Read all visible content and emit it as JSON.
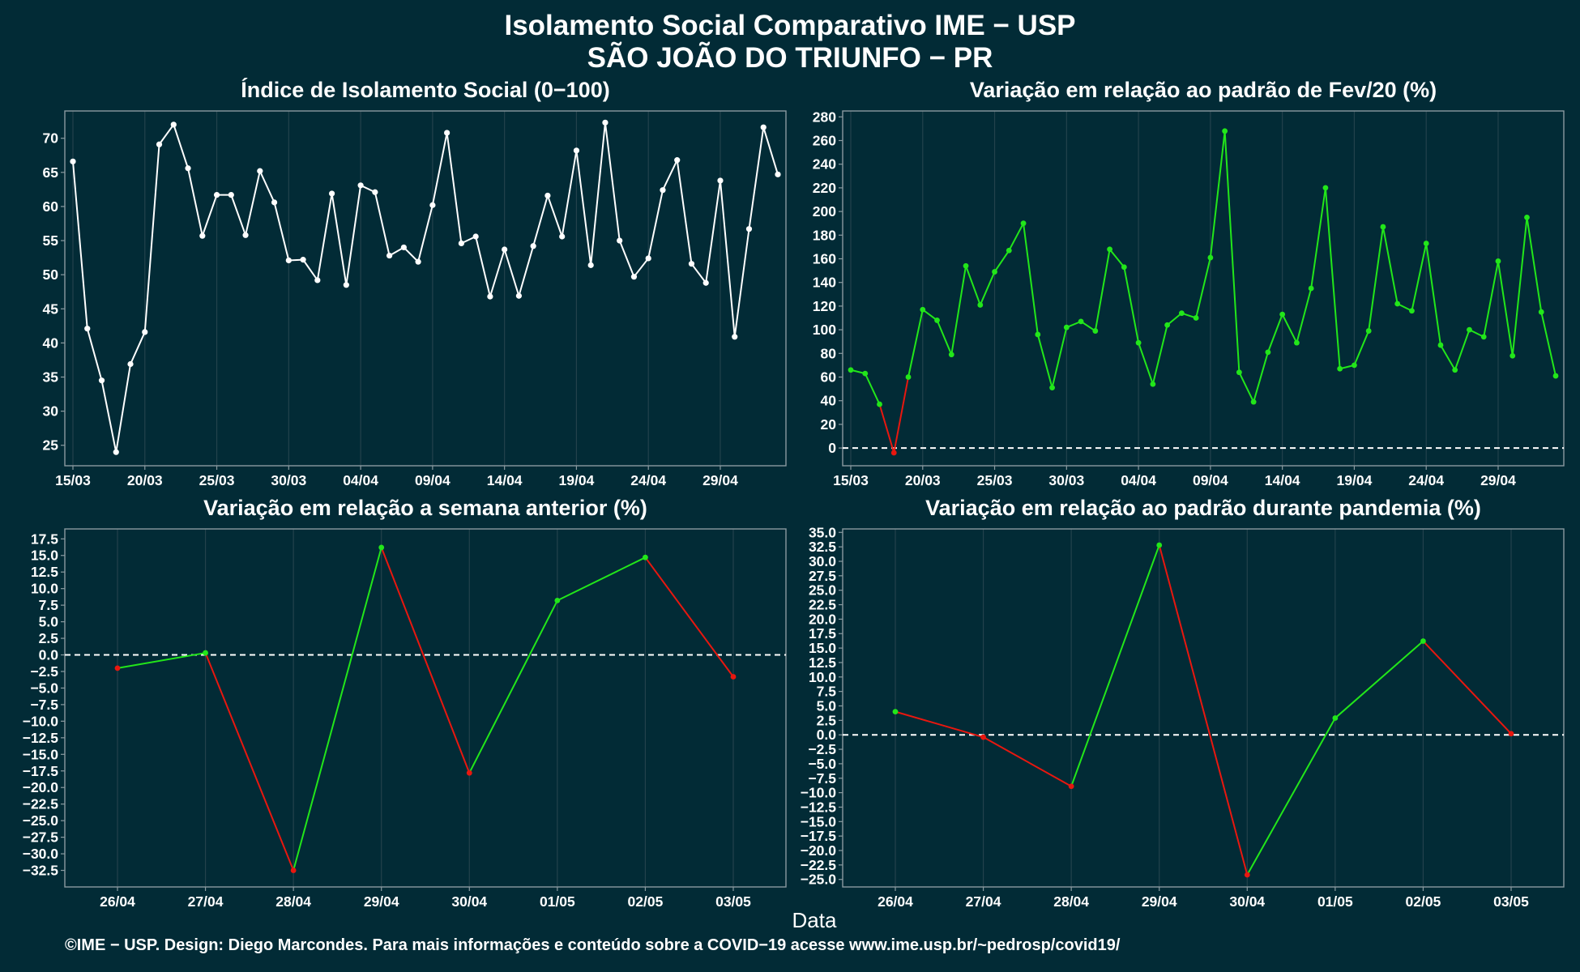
{
  "header": {
    "title": "Isolamento Social Comparativo IME − USP",
    "subtitle": "SÃO JOÃO DO TRIUNFO − PR"
  },
  "footer": "©IME − USP. Design: Diego Marcondes. Para mais informações e conteúdo sobre a COVID−19 acesse www.ime.usp.br/~pedrosp/covid19/",
  "xlabel": "Data",
  "colors": {
    "background": "#022b36",
    "frame": "#8a9aa0",
    "grid": "#23424c",
    "up": "#22e61a",
    "down": "#e8170f",
    "index": "#ffffff"
  },
  "chart_data": [
    {
      "id": "isolation-index",
      "type": "line",
      "title": "Índice de Isolamento Social (0−100)",
      "x": [
        "15/03",
        "16/03",
        "17/03",
        "18/03",
        "19/03",
        "20/03",
        "21/03",
        "22/03",
        "23/03",
        "24/03",
        "25/03",
        "26/03",
        "27/03",
        "28/03",
        "29/03",
        "30/03",
        "31/03",
        "01/04",
        "02/04",
        "03/04",
        "04/04",
        "05/04",
        "06/04",
        "07/04",
        "08/04",
        "09/04",
        "10/04",
        "11/04",
        "12/04",
        "13/04",
        "14/04",
        "15/04",
        "16/04",
        "17/04",
        "18/04",
        "19/04",
        "20/04",
        "21/04",
        "22/04",
        "23/04",
        "24/04",
        "25/04",
        "26/04",
        "27/04",
        "28/04",
        "29/04",
        "30/04",
        "01/05",
        "02/05",
        "03/05"
      ],
      "x_ticks": [
        "15/03",
        "20/03",
        "25/03",
        "30/03",
        "04/04",
        "09/04",
        "14/04",
        "19/04",
        "24/04",
        "29/04"
      ],
      "values": [
        66.6,
        42.1,
        34.5,
        24.0,
        36.9,
        41.6,
        69.1,
        72.0,
        65.6,
        55.7,
        61.7,
        61.7,
        55.8,
        65.2,
        60.6,
        52.1,
        52.2,
        49.2,
        61.9,
        48.5,
        63.1,
        62.1,
        52.8,
        54.0,
        51.9,
        60.2,
        70.8,
        54.6,
        55.6,
        46.8,
        53.7,
        46.9,
        54.2,
        61.6,
        55.6,
        68.2,
        51.4,
        72.3,
        55.0,
        49.7,
        52.4,
        62.4,
        66.8,
        51.6,
        48.8,
        63.8,
        40.9,
        56.7,
        71.6,
        64.7
      ],
      "ylim": [
        22,
        74
      ],
      "y_ticks": [
        25,
        30,
        35,
        40,
        45,
        50,
        55,
        60,
        65,
        70
      ]
    },
    {
      "id": "variation-feb",
      "type": "line",
      "title": "Variação em relação ao padrão de Fev/20 (%)",
      "x": [
        "15/03",
        "16/03",
        "17/03",
        "18/03",
        "19/03",
        "20/03",
        "21/03",
        "22/03",
        "23/03",
        "24/03",
        "25/03",
        "26/03",
        "27/03",
        "28/03",
        "29/03",
        "30/03",
        "31/03",
        "01/04",
        "02/04",
        "03/04",
        "04/04",
        "05/04",
        "06/04",
        "07/04",
        "08/04",
        "09/04",
        "10/04",
        "11/04",
        "12/04",
        "13/04",
        "14/04",
        "15/04",
        "16/04",
        "17/04",
        "18/04",
        "19/04",
        "20/04",
        "21/04",
        "22/04",
        "23/04",
        "24/04",
        "25/04",
        "26/04",
        "27/04",
        "28/04",
        "29/04",
        "30/04",
        "01/05",
        "02/05",
        "03/05"
      ],
      "x_ticks": [
        "15/03",
        "20/03",
        "25/03",
        "30/03",
        "04/04",
        "09/04",
        "14/04",
        "19/04",
        "24/04",
        "29/04"
      ],
      "values": [
        66,
        63,
        37,
        -4,
        60,
        117,
        108,
        79,
        154,
        121,
        149,
        167,
        190,
        96,
        51,
        102,
        107,
        99,
        168,
        153,
        89,
        54,
        104,
        114,
        110,
        161,
        268,
        64,
        39,
        81,
        113,
        89,
        135,
        220,
        67,
        70,
        99,
        187,
        122,
        116,
        173,
        87,
        66,
        100,
        94,
        158,
        78,
        195,
        115,
        61
      ],
      "ylim": [
        -15,
        285
      ],
      "y_ticks": [
        0,
        20,
        40,
        60,
        80,
        100,
        120,
        140,
        160,
        180,
        200,
        220,
        240,
        260,
        280
      ]
    },
    {
      "id": "variation-prev-week",
      "type": "line",
      "title": "Variação em relação a semana anterior (%)",
      "x": [
        "26/04",
        "27/04",
        "28/04",
        "29/04",
        "30/04",
        "01/05",
        "02/05",
        "03/05"
      ],
      "x_ticks": [
        "26/04",
        "27/04",
        "28/04",
        "29/04",
        "30/04",
        "01/05",
        "02/05",
        "03/05"
      ],
      "values": [
        -2.0,
        0.3,
        -32.5,
        16.2,
        -17.8,
        8.2,
        14.7,
        -3.3
      ],
      "ylim": [
        -35,
        19
      ],
      "y_ticks": [
        17.5,
        15.0,
        12.5,
        10.0,
        7.5,
        5.0,
        2.5,
        0.0,
        -2.5,
        -5.0,
        -7.5,
        -10.0,
        -12.5,
        -15.0,
        -17.5,
        -20.0,
        -22.5,
        -25.0,
        -27.5,
        -30.0,
        -32.5
      ]
    },
    {
      "id": "variation-pandemic",
      "type": "line",
      "title": "Variação em relação ao padrão durante pandemia (%)",
      "x": [
        "26/04",
        "27/04",
        "28/04",
        "29/04",
        "30/04",
        "01/05",
        "02/05",
        "03/05"
      ],
      "x_ticks": [
        "26/04",
        "27/04",
        "28/04",
        "29/04",
        "30/04",
        "01/05",
        "02/05",
        "03/05"
      ],
      "values": [
        4.0,
        -0.4,
        -8.9,
        32.8,
        -24.2,
        2.9,
        16.2,
        0.2
      ],
      "ylim": [
        -26.3,
        35.6
      ],
      "y_ticks": [
        35.0,
        32.5,
        30.0,
        27.5,
        25.0,
        22.5,
        20.0,
        17.5,
        15.0,
        12.5,
        10.0,
        7.5,
        5.0,
        2.5,
        0.0,
        -2.5,
        -5.0,
        -7.5,
        -10.0,
        -12.5,
        -15.0,
        -17.5,
        -20.0,
        -22.5,
        -25.0
      ]
    }
  ]
}
